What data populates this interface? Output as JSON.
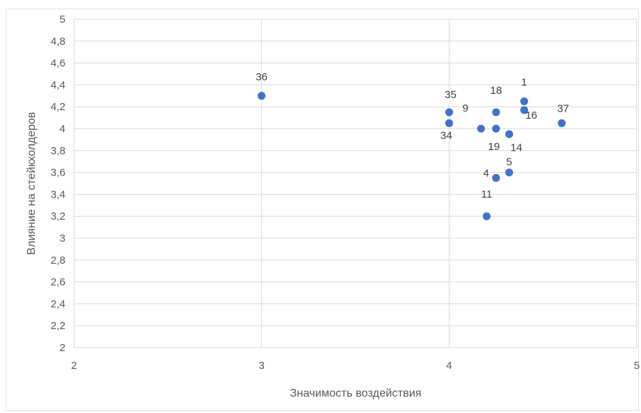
{
  "chart_data": {
    "type": "scatter",
    "xlabel": "Значимость воздействия",
    "ylabel": "Влияние на стейкхолдеров",
    "xlim": [
      2,
      5
    ],
    "ylim": [
      2,
      5
    ],
    "x_ticks": [
      "2",
      "3",
      "4",
      "5"
    ],
    "y_ticks": [
      "2",
      "2,2",
      "2,4",
      "2,6",
      "2,8",
      "3",
      "3,2",
      "3,4",
      "3,6",
      "3,8",
      "4",
      "4,2",
      "4,4",
      "4,6",
      "4,8",
      "5"
    ],
    "grid": true,
    "marker_color": "#4472C4",
    "points": [
      {
        "label": "36",
        "x": 3.0,
        "y": 4.3
      },
      {
        "label": "35",
        "x": 4.0,
        "y": 4.15
      },
      {
        "label": "34",
        "x": 4.0,
        "y": 4.05
      },
      {
        "label": "9",
        "x": 4.17,
        "y": 4.0
      },
      {
        "label": "18",
        "x": 4.25,
        "y": 4.15
      },
      {
        "label": "19",
        "x": 4.25,
        "y": 4.0
      },
      {
        "label": "14",
        "x": 4.32,
        "y": 3.95
      },
      {
        "label": "1",
        "x": 4.4,
        "y": 4.25
      },
      {
        "label": "16",
        "x": 4.4,
        "y": 4.17
      },
      {
        "label": "37",
        "x": 4.6,
        "y": 4.05
      },
      {
        "label": "5",
        "x": 4.32,
        "y": 3.6
      },
      {
        "label": "4",
        "x": 4.25,
        "y": 3.55
      },
      {
        "label": "11",
        "x": 4.2,
        "y": 3.2
      }
    ]
  }
}
